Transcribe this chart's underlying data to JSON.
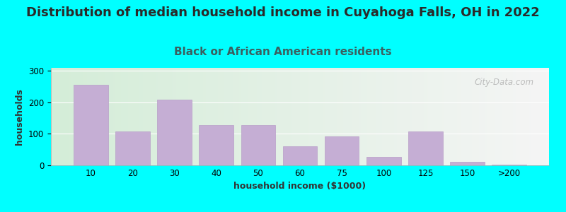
{
  "title": "Distribution of median household income in Cuyahoga Falls, OH in 2022",
  "subtitle": "Black or African American residents",
  "xlabel": "household income ($1000)",
  "ylabel": "households",
  "background_outer": "#00FFFF",
  "background_inner_left": "#d4edd8",
  "background_inner_right": "#f5f5f5",
  "bar_color": "#c5aed4",
  "bar_edge_color": "#b89ec8",
  "categories": [
    "10",
    "20",
    "30",
    "40",
    "50",
    "60",
    "75",
    "100",
    "125",
    "150",
    ">200"
  ],
  "values": [
    255,
    108,
    210,
    127,
    127,
    60,
    92,
    28,
    108,
    12,
    3
  ],
  "ylim": [
    0,
    310
  ],
  "yticks": [
    0,
    100,
    200,
    300
  ],
  "title_fontsize": 13,
  "subtitle_fontsize": 11,
  "axis_label_fontsize": 9,
  "tick_fontsize": 8.5,
  "title_color": "#2a2a2a",
  "subtitle_color": "#3a6060",
  "watermark_text": "City-Data.com"
}
